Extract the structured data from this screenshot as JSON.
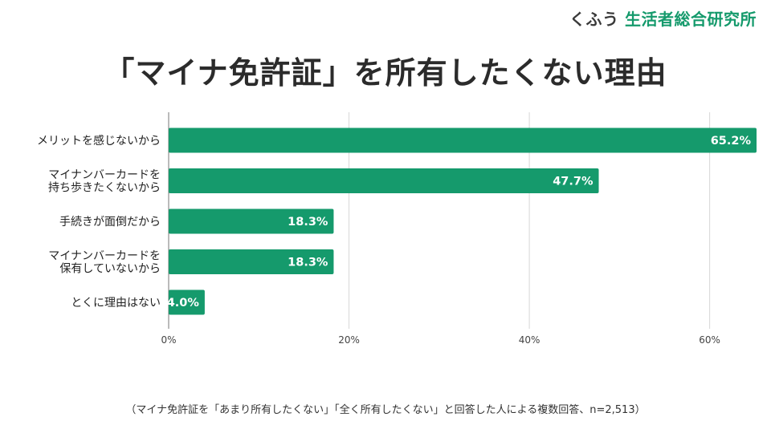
{
  "header": {
    "brand_prefix": "くふう",
    "brand_name": "生活者総合研究所"
  },
  "chart_data": {
    "type": "bar",
    "orientation": "horizontal",
    "title": "「マイナ免許証」を所有したくない理由",
    "categories": [
      [
        "メリットを感じないから"
      ],
      [
        "マイナンバーカードを",
        "持ち歩きたくないから"
      ],
      [
        "手続きが面倒だから"
      ],
      [
        "マイナンバーカードを",
        "保有していないから"
      ],
      [
        "とくに理由はない"
      ]
    ],
    "values": [
      65.2,
      47.7,
      18.3,
      18.3,
      4.0
    ],
    "value_labels": [
      "65.2%",
      "47.7%",
      "18.3%",
      "18.3%",
      "4.0%"
    ],
    "x_ticks": [
      0,
      20,
      40,
      60
    ],
    "x_tick_labels": [
      "0%",
      "20%",
      "40%",
      "60%"
    ],
    "xlim": [
      0,
      65.2
    ],
    "grid": true,
    "bar_color": "#159a6c",
    "xlabel": "",
    "ylabel": ""
  },
  "footnote": "（マイナ免許証を「あまり所有したくない」「全く所有したくない」と回答した人による複数回答、n=2,513）"
}
